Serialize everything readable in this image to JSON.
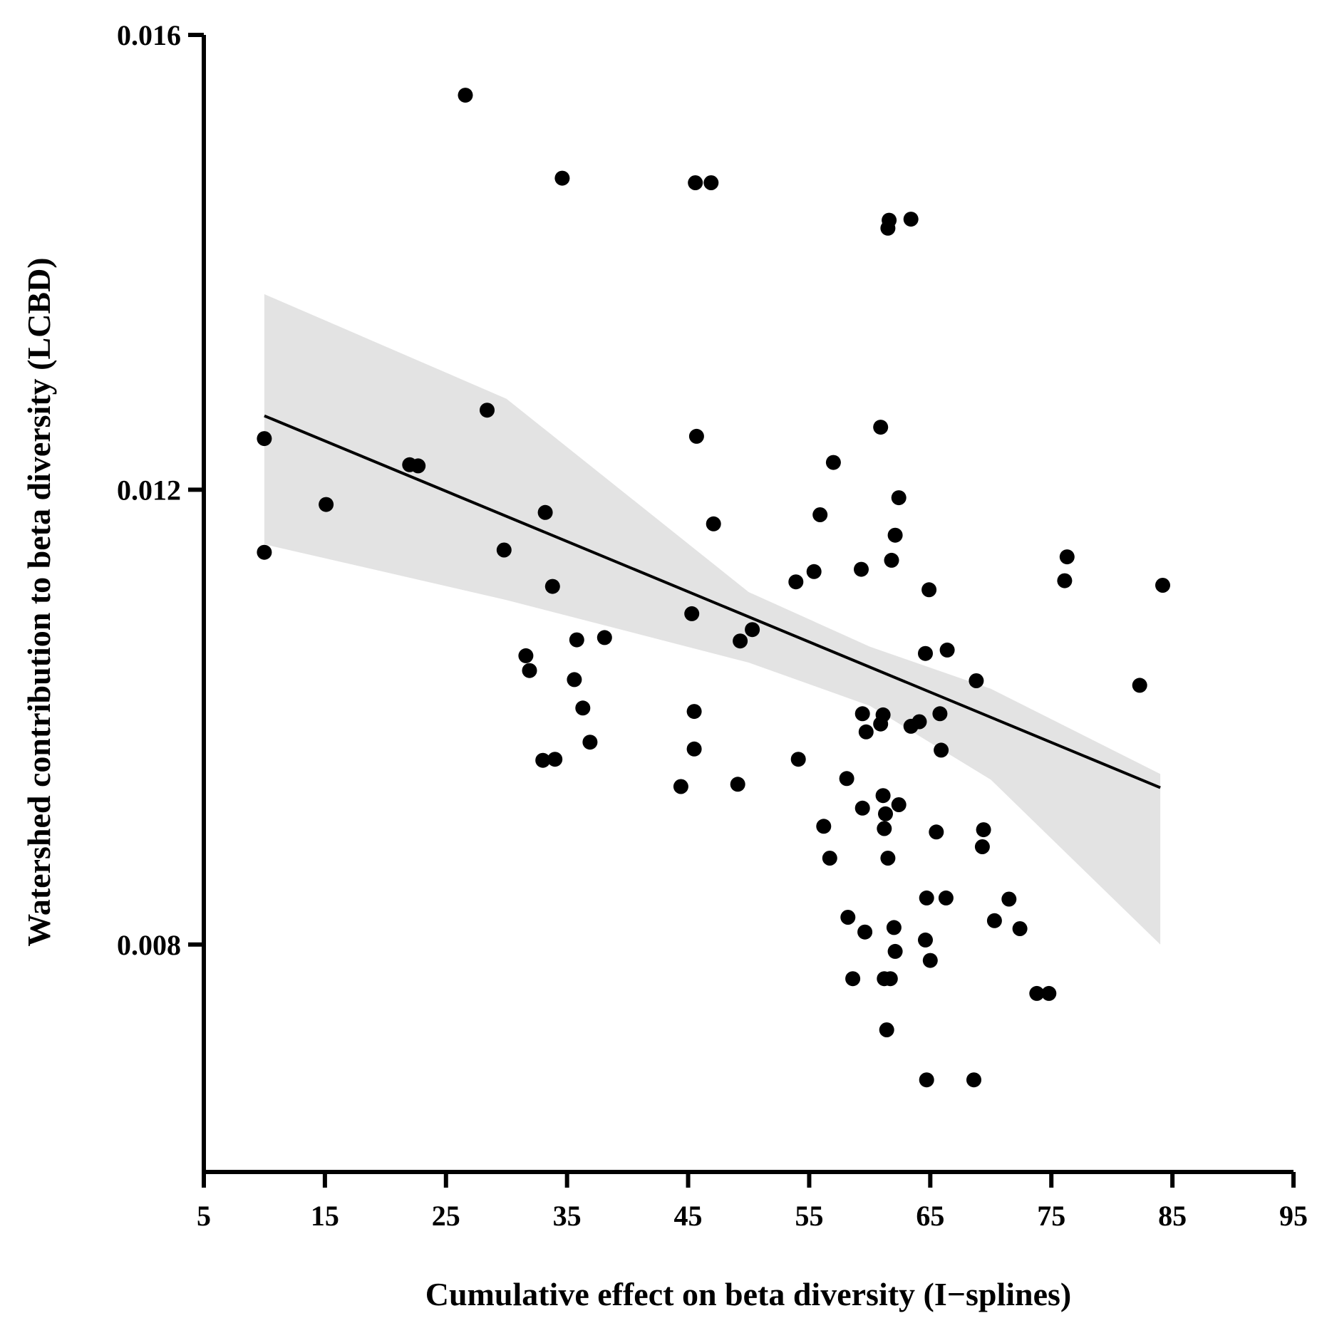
{
  "chart_data": {
    "type": "scatter",
    "title": "",
    "xlabel": "Cumulative effect on beta diversity (I−splines)",
    "ylabel": "Watershed contribution to beta diversity (LCBD)",
    "xlim": [
      5,
      95
    ],
    "ylim": [
      0.006,
      0.016
    ],
    "x_ticks": [
      5,
      15,
      25,
      35,
      45,
      55,
      65,
      75,
      85,
      95
    ],
    "y_ticks": [
      0.008,
      0.012,
      0.016
    ],
    "y_tick_labels": [
      "0.008",
      "0.012",
      "0.016"
    ],
    "grid": false,
    "colors": {
      "points": "#000000",
      "fit_line": "#000000",
      "confidence_band": "#e3e3e3",
      "axes": "#000000"
    },
    "fit_line": {
      "x": [
        10,
        84
      ],
      "y": [
        0.01265,
        0.00938
      ]
    },
    "confidence_band": {
      "x": [
        10,
        30,
        50,
        60,
        70,
        84
      ],
      "lower": [
        0.01152,
        0.01103,
        0.01048,
        0.0101,
        0.00945,
        0.008
      ],
      "upper": [
        0.01372,
        0.0128,
        0.0111,
        0.01062,
        0.01025,
        0.0095
      ]
    },
    "points": {
      "x": [
        26.6,
        34.6,
        45.6,
        46.9,
        61.6,
        63.4,
        61.5,
        28.4,
        45.7,
        60.9,
        10,
        22,
        22.7,
        57,
        15.1,
        33.2,
        55.9,
        62.4,
        47.1,
        62.1,
        10,
        29.8,
        61.8,
        59.3,
        76.3,
        33.8,
        55.4,
        53.9,
        76.1,
        84.2,
        64.9,
        45.3,
        38.1,
        35.8,
        50.3,
        49.3,
        66.4,
        64.6,
        31.6,
        31.9,
        35.6,
        68.8,
        82.3,
        36.3,
        45.5,
        59.4,
        61.1,
        63.4,
        64.1,
        65.8,
        60.9,
        59.7,
        36.9,
        45.5,
        65.9,
        33,
        34,
        54.1,
        44.4,
        49.1,
        58.1,
        61.1,
        62.4,
        59.4,
        61.3,
        56.2,
        61.2,
        65.5,
        69.4,
        69.3,
        56.7,
        61.5,
        64.7,
        66.3,
        71.5,
        58.2,
        70.3,
        72.4,
        59.6,
        62,
        64.6,
        62.1,
        65,
        58.6,
        61.2,
        61.7,
        73.8,
        74.8,
        61.4,
        64.7,
        68.6
      ],
      "y": [
        0.01547,
        0.01474,
        0.0147,
        0.0147,
        0.01437,
        0.01438,
        0.0143,
        0.0127,
        0.01247,
        0.01255,
        0.01245,
        0.01222,
        0.01221,
        0.01224,
        0.01187,
        0.0118,
        0.01178,
        0.01193,
        0.0117,
        0.0116,
        0.01145,
        0.01147,
        0.01138,
        0.0113,
        0.01141,
        0.01115,
        0.01128,
        0.01119,
        0.0112,
        0.01116,
        0.01112,
        0.01091,
        0.0107,
        0.01068,
        0.01077,
        0.01067,
        0.01059,
        0.01056,
        0.01054,
        0.01041,
        0.01033,
        0.01032,
        0.01028,
        0.01008,
        0.01005,
        0.01003,
        0.01002,
        0.00992,
        0.00996,
        0.01003,
        0.00994,
        0.00987,
        0.00978,
        0.00972,
        0.00971,
        0.00962,
        0.00963,
        0.00963,
        0.00939,
        0.00941,
        0.00946,
        0.00931,
        0.00923,
        0.0092,
        0.00915,
        0.00904,
        0.00902,
        0.00899,
        0.00901,
        0.00886,
        0.00876,
        0.00876,
        0.00841,
        0.00841,
        0.0084,
        0.00824,
        0.00821,
        0.00814,
        0.00811,
        0.00815,
        0.00804,
        0.00794,
        0.00786,
        0.0077,
        0.0077,
        0.0077,
        0.00757,
        0.00757,
        0.00725,
        0.00681,
        0.00681
      ]
    }
  }
}
